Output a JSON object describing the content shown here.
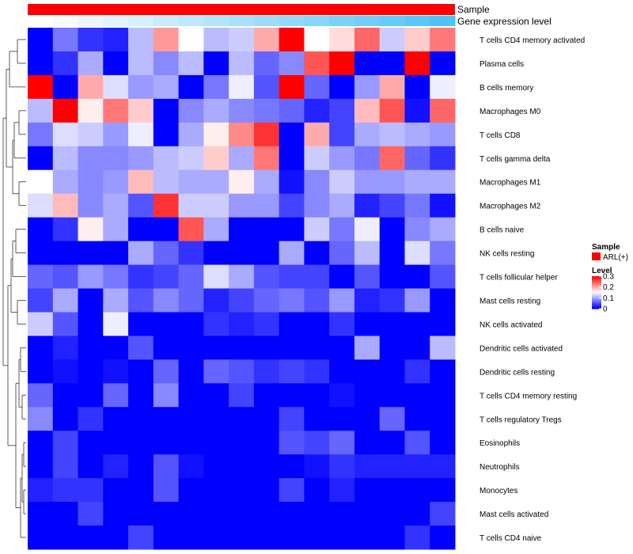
{
  "chart_data": {
    "type": "heatmap",
    "rows": [
      "T cells CD4 memory activated",
      "Plasma cells",
      "B cells memory",
      "Macrophages M0",
      "T cells CD8",
      "T cells gamma delta",
      "Macrophages M1",
      "Macrophages M2",
      "B cells naive",
      "NK cells resting",
      "T cells follicular helper",
      "Mast cells resting",
      "NK cells activated",
      "Dendritic cells activated",
      "Dendritic cells resting",
      "T cells CD4 memory resting",
      "T cells regulatory  Tregs",
      "Eosinophils",
      "Neutrophils",
      "Monocytes",
      "Mast cells activated",
      "T cells CD4 naive"
    ],
    "values": [
      [
        0.0,
        0.07,
        0.03,
        0.02,
        0.11,
        0.21,
        0.15,
        0.11,
        0.12,
        0.2,
        0.3,
        0.15,
        0.17,
        0.24,
        0.12,
        0.18,
        0.23
      ],
      [
        0.0,
        0.03,
        0.1,
        0.0,
        0.11,
        0.08,
        0.11,
        0.0,
        0.11,
        0.06,
        0.08,
        0.25,
        0.3,
        0.0,
        0.0,
        0.3,
        0.0
      ],
      [
        0.3,
        0.0,
        0.2,
        0.13,
        0.09,
        0.1,
        0.0,
        0.07,
        0.14,
        0.05,
        0.3,
        0.06,
        0.0,
        0.09,
        0.2,
        0.0,
        0.14
      ],
      [
        0.11,
        0.3,
        0.16,
        0.23,
        0.18,
        0.0,
        0.08,
        0.1,
        0.08,
        0.07,
        0.06,
        0.02,
        0.04,
        0.19,
        0.25,
        0.01,
        0.24
      ],
      [
        0.07,
        0.13,
        0.12,
        0.09,
        0.14,
        0.0,
        0.1,
        0.16,
        0.22,
        0.27,
        0.0,
        0.2,
        0.04,
        0.1,
        0.11,
        0.1,
        0.09
      ],
      [
        0.0,
        0.11,
        0.08,
        0.08,
        0.09,
        0.11,
        0.12,
        0.18,
        0.1,
        0.23,
        0.0,
        0.12,
        0.09,
        0.07,
        0.24,
        0.06,
        0.03
      ],
      [
        0.15,
        0.1,
        0.08,
        0.09,
        0.19,
        0.11,
        0.1,
        0.1,
        0.16,
        0.1,
        0.01,
        0.08,
        0.12,
        0.09,
        0.09,
        0.1,
        0.1
      ],
      [
        0.13,
        0.19,
        0.08,
        0.1,
        0.05,
        0.27,
        0.12,
        0.12,
        0.09,
        0.09,
        0.04,
        0.08,
        0.1,
        0.02,
        0.04,
        0.07,
        0.01
      ],
      [
        0.0,
        0.03,
        0.16,
        0.1,
        0.0,
        0.0,
        0.25,
        0.1,
        0.0,
        0.0,
        0.0,
        0.12,
        0.07,
        0.14,
        0.0,
        0.08,
        0.1
      ],
      [
        0.0,
        0.0,
        0.0,
        0.0,
        0.1,
        0.06,
        0.03,
        0.0,
        0.0,
        0.0,
        0.1,
        0.0,
        0.06,
        0.11,
        0.0,
        0.13,
        0.07
      ],
      [
        0.06,
        0.05,
        0.09,
        0.07,
        0.03,
        0.04,
        0.06,
        0.13,
        0.1,
        0.05,
        0.04,
        0.04,
        0.0,
        0.05,
        0.0,
        0.0,
        0.05
      ],
      [
        0.04,
        0.1,
        0.0,
        0.1,
        0.05,
        0.08,
        0.06,
        0.02,
        0.04,
        0.06,
        0.07,
        0.05,
        0.09,
        0.02,
        0.03,
        0.09,
        0.0
      ],
      [
        0.12,
        0.05,
        0.0,
        0.14,
        0.0,
        0.0,
        0.0,
        0.03,
        0.02,
        0.03,
        0.0,
        0.0,
        0.03,
        0.0,
        0.0,
        0.0,
        0.0
      ],
      [
        0.0,
        0.02,
        0.0,
        0.0,
        0.05,
        0.0,
        0.0,
        0.0,
        0.0,
        0.0,
        0.0,
        0.0,
        0.0,
        0.1,
        0.0,
        0.0,
        0.11
      ],
      [
        0.0,
        0.01,
        0.0,
        0.01,
        0.0,
        0.06,
        0.0,
        0.06,
        0.05,
        0.03,
        0.04,
        0.03,
        0.0,
        0.0,
        0.0,
        0.03,
        0.0
      ],
      [
        0.06,
        0.0,
        0.0,
        0.06,
        0.0,
        0.08,
        0.0,
        0.0,
        0.04,
        0.0,
        0.0,
        0.0,
        0.01,
        0.0,
        0.0,
        0.0,
        0.0
      ],
      [
        0.08,
        0.0,
        0.03,
        0.0,
        0.0,
        0.0,
        0.0,
        0.0,
        0.0,
        0.0,
        0.04,
        0.0,
        0.0,
        0.0,
        0.06,
        0.0,
        0.0
      ],
      [
        0.0,
        0.04,
        0.0,
        0.0,
        0.0,
        0.0,
        0.0,
        0.0,
        0.0,
        0.0,
        0.05,
        0.04,
        0.06,
        0.0,
        0.0,
        0.05,
        0.0
      ],
      [
        0.0,
        0.04,
        0.0,
        0.02,
        0.0,
        0.05,
        0.01,
        0.0,
        0.0,
        0.0,
        0.0,
        0.01,
        0.03,
        0.02,
        0.02,
        0.02,
        0.02
      ],
      [
        0.02,
        0.03,
        0.03,
        0.0,
        0.0,
        0.05,
        0.0,
        0.0,
        0.0,
        0.0,
        0.04,
        0.0,
        0.02,
        0.0,
        0.0,
        0.0,
        0.0
      ],
      [
        0.0,
        0.0,
        0.04,
        0.0,
        0.0,
        0.0,
        0.0,
        0.0,
        0.0,
        0.0,
        0.0,
        0.0,
        0.0,
        0.0,
        0.0,
        0.0,
        0.04
      ],
      [
        0.0,
        0.0,
        0.0,
        0.0,
        0.04,
        0.0,
        0.0,
        0.0,
        0.0,
        0.0,
        0.0,
        0.0,
        0.0,
        0.0,
        0.0,
        0.03,
        0.0
      ]
    ],
    "value_range": [
      0,
      0.3
    ],
    "color_low": "#0000ff",
    "color_mid": "#ffffff",
    "color_high": "#ff0000",
    "annotations": [
      {
        "label": "Sample",
        "color": "#ff0000"
      },
      {
        "label": "Gene expression level",
        "gradient_from": "#ffffff",
        "gradient_to": "#4fc3f7"
      }
    ],
    "legend": {
      "sample_title": "Sample",
      "sample_entry": "ARL(+)",
      "sample_color": "#ff0000",
      "level_title": "Level",
      "level_ticks": [
        "0.3",
        "0.2",
        "0.1",
        "0"
      ]
    },
    "row_dendrogram": true
  }
}
